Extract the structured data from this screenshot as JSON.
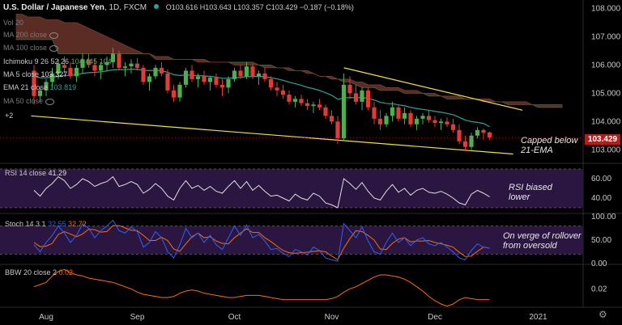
{
  "header": {
    "symbol": "U.S. Dollar / Japanese Yen",
    "interval": "1D",
    "exchange": "FXCM",
    "ohlc": "O103.616  H103.643  L103.357  C103.429  −0.187 (−0.18%)"
  },
  "indicators_panel": {
    "vol": "Vol 20",
    "ma200": "MA 200 close",
    "ma100": "MA 100 close",
    "ichimoku": "Ichimoku 9 26 52 26",
    "ichimoku_vals": "104.445  104",
    "ma5": "MA 5 close",
    "ma5_val": "103.327",
    "ema21": "EMA 21 close",
    "ema21_val": "103.819",
    "ma50": "MA 50 close",
    "more": "+2"
  },
  "price_tag": "103.429",
  "annotations": {
    "capped": [
      "Capped below",
      "21-EMA"
    ],
    "rsi": [
      "RSI biased",
      "lower"
    ],
    "stoch": [
      "On verge of rollover",
      "from oversold"
    ]
  },
  "pane_labels": {
    "rsi": "RSI 14 close",
    "rsi_val": "41.29",
    "stoch": "Stoch 14 3 1",
    "stoch_k": "32.55",
    "stoch_d": "32.72",
    "bbw": "BBW 20 close 2",
    "bbw_val": "0.02"
  },
  "colors": {
    "up": "#4caf50",
    "down": "#e53935",
    "cloud": "#7a3b30",
    "ema": "#26a69a",
    "trendline": "#f2e33a",
    "rsi_band": "#2a1640",
    "stoch_k": "#2962ff",
    "stoch_d": "#ff6d00",
    "bbw": "#ff6d00"
  },
  "chart_data": {
    "type": "candlestick",
    "title": "U.S. Dollar / Japanese Yen, 1D, FXCM",
    "x_ticks": [
      "Aug",
      "Sep",
      "Oct",
      "Nov",
      "Dec",
      "2021"
    ],
    "price_axis": {
      "ticks": [
        108.0,
        107.0,
        106.0,
        105.0,
        104.0,
        103.0
      ],
      "ylim": [
        102.55,
        108.3
      ],
      "last": 103.429
    },
    "candles": [
      [
        105.8,
        106.0,
        104.6,
        104.9
      ],
      [
        104.9,
        105.2,
        104.7,
        105.1
      ],
      [
        105.1,
        105.5,
        104.9,
        105.4
      ],
      [
        105.4,
        105.9,
        105.2,
        105.7
      ],
      [
        105.7,
        106.2,
        105.5,
        106.05
      ],
      [
        106.0,
        106.3,
        105.7,
        105.9
      ],
      [
        105.9,
        106.1,
        105.5,
        105.6
      ],
      [
        105.6,
        106.0,
        105.4,
        105.9
      ],
      [
        105.9,
        106.4,
        105.7,
        106.2
      ],
      [
        106.2,
        106.4,
        105.9,
        106.0
      ],
      [
        106.0,
        106.2,
        105.6,
        105.8
      ],
      [
        105.8,
        106.1,
        105.5,
        106.0
      ],
      [
        106.0,
        106.3,
        105.8,
        106.1
      ],
      [
        106.1,
        106.6,
        105.9,
        106.4
      ],
      [
        106.4,
        106.5,
        105.8,
        105.9
      ],
      [
        105.9,
        106.1,
        105.6,
        105.95
      ],
      [
        105.95,
        106.2,
        105.7,
        106.05
      ],
      [
        106.05,
        106.25,
        105.8,
        105.9
      ],
      [
        105.9,
        106.0,
        105.3,
        105.4
      ],
      [
        105.4,
        105.7,
        105.1,
        105.6
      ],
      [
        105.6,
        106.0,
        105.5,
        105.9
      ],
      [
        105.9,
        106.1,
        105.6,
        105.7
      ],
      [
        105.7,
        105.85,
        105.0,
        105.1
      ],
      [
        105.1,
        105.3,
        104.7,
        104.85
      ],
      [
        104.85,
        105.4,
        104.7,
        105.3
      ],
      [
        105.3,
        105.9,
        105.2,
        105.8
      ],
      [
        105.8,
        106.0,
        105.4,
        105.5
      ],
      [
        105.5,
        105.7,
        105.2,
        105.6
      ],
      [
        105.6,
        105.8,
        105.3,
        105.4
      ],
      [
        105.4,
        105.6,
        105.1,
        105.55
      ],
      [
        105.55,
        105.7,
        105.2,
        105.3
      ],
      [
        105.3,
        105.5,
        104.9,
        105.2
      ],
      [
        105.2,
        105.6,
        105.0,
        105.5
      ],
      [
        105.5,
        105.9,
        105.4,
        105.8
      ],
      [
        105.8,
        106.0,
        105.5,
        105.6
      ],
      [
        105.6,
        106.1,
        105.5,
        105.95
      ],
      [
        105.95,
        106.05,
        105.5,
        105.6
      ],
      [
        105.6,
        105.8,
        105.3,
        105.7
      ],
      [
        105.7,
        105.9,
        105.4,
        105.5
      ],
      [
        105.5,
        105.6,
        105.1,
        105.2
      ],
      [
        105.2,
        105.4,
        104.9,
        105.1
      ],
      [
        105.1,
        105.3,
        104.8,
        104.95
      ],
      [
        104.95,
        105.1,
        104.6,
        104.7
      ],
      [
        104.7,
        104.9,
        104.5,
        104.8
      ],
      [
        104.8,
        104.95,
        104.55,
        104.65
      ],
      [
        104.65,
        104.8,
        104.4,
        104.55
      ],
      [
        104.55,
        104.7,
        104.3,
        104.6
      ],
      [
        104.6,
        104.8,
        104.4,
        104.5
      ],
      [
        104.5,
        104.6,
        104.1,
        104.2
      ],
      [
        104.2,
        104.4,
        103.9,
        104.0
      ],
      [
        104.0,
        104.2,
        103.2,
        103.4
      ],
      [
        103.4,
        105.7,
        103.3,
        105.3
      ],
      [
        105.3,
        105.6,
        104.8,
        105.0
      ],
      [
        105.0,
        105.3,
        104.6,
        104.7
      ],
      [
        104.7,
        105.2,
        104.4,
        105.1
      ],
      [
        105.1,
        105.2,
        104.4,
        104.5
      ],
      [
        104.5,
        104.7,
        103.9,
        104.1
      ],
      [
        104.1,
        104.4,
        103.7,
        103.9
      ],
      [
        103.9,
        104.3,
        103.8,
        104.2
      ],
      [
        104.2,
        104.7,
        104.0,
        104.5
      ],
      [
        104.5,
        104.6,
        104.0,
        104.1
      ],
      [
        104.1,
        104.5,
        103.9,
        104.3
      ],
      [
        104.3,
        104.4,
        103.8,
        103.9
      ],
      [
        103.9,
        104.2,
        103.7,
        104.1
      ],
      [
        104.1,
        104.3,
        103.9,
        104.2
      ],
      [
        104.2,
        104.4,
        103.95,
        104.05
      ],
      [
        104.05,
        104.2,
        103.8,
        103.95
      ],
      [
        103.95,
        104.1,
        103.7,
        104.0
      ],
      [
        104.0,
        104.15,
        103.8,
        103.9
      ],
      [
        103.9,
        104.1,
        103.6,
        103.7
      ],
      [
        103.7,
        103.9,
        103.2,
        103.3
      ],
      [
        103.3,
        103.5,
        102.95,
        103.1
      ],
      [
        103.1,
        103.6,
        103.0,
        103.5
      ],
      [
        103.5,
        103.8,
        103.4,
        103.7
      ],
      [
        103.7,
        103.75,
        103.35,
        103.6
      ],
      [
        103.616,
        103.643,
        103.357,
        103.429
      ]
    ],
    "ema21": [
      105.6,
      105.55,
      105.55,
      105.56,
      105.6,
      105.63,
      105.63,
      105.66,
      105.7,
      105.73,
      105.74,
      105.76,
      105.79,
      105.83,
      105.84,
      105.84,
      105.85,
      105.85,
      105.81,
      105.8,
      105.81,
      105.8,
      105.74,
      105.66,
      105.63,
      105.65,
      105.63,
      105.63,
      105.61,
      105.6,
      105.57,
      105.53,
      105.53,
      105.55,
      105.56,
      105.59,
      105.59,
      105.6,
      105.59,
      105.55,
      105.51,
      105.46,
      105.39,
      105.34,
      105.28,
      105.21,
      105.16,
      105.1,
      105.02,
      104.93,
      104.79,
      104.83,
      104.85,
      104.84,
      104.85,
      104.82,
      104.76,
      104.68,
      104.64,
      104.63,
      104.59,
      104.56,
      104.5,
      104.46,
      104.43,
      104.4,
      104.36,
      104.33,
      104.29,
      104.24,
      104.15,
      104.05,
      104.0,
      103.97,
      103.93,
      103.82
    ],
    "cloud_a": [
      106.9,
      106.9,
      106.9,
      106.9,
      106.9,
      106.9,
      106.9,
      106.4,
      106.4,
      106.4,
      106.4,
      106.4,
      106.4,
      106.4,
      106.4,
      106.4,
      106.4,
      106.4,
      106.4,
      106.4,
      106.4,
      106.4,
      106.4,
      106.2,
      106.2,
      106.2,
      106.2,
      106.2,
      106.2,
      106.2,
      106.2,
      106.2,
      106.1,
      106.1,
      106.1,
      106.1,
      106.1,
      106.1,
      106.1,
      106.1,
      106.0,
      106.0,
      106.0,
      105.9,
      105.9,
      105.9,
      105.8,
      105.8,
      105.8,
      105.7,
      105.6,
      105.6,
      105.5,
      105.5,
      105.4,
      105.4,
      105.3,
      105.2,
      105.2,
      105.2,
      105.1,
      105.1,
      105.1,
      105.1,
      105.0,
      105.0,
      105.0,
      105.0,
      104.9,
      104.9,
      104.9,
      104.8,
      104.8,
      104.8,
      104.8,
      104.8,
      104.8,
      104.7,
      104.7,
      104.7,
      104.7,
      104.6,
      104.6,
      104.6,
      104.6,
      104.6,
      104.5,
      104.5,
      104.5,
      104.5,
      104.5
    ],
    "cloud_b": [
      107.8,
      107.8,
      107.7,
      107.7,
      107.7,
      107.6,
      107.6,
      107.6,
      107.5,
      107.5,
      107.5,
      107.4,
      107.3,
      107.2,
      107.1,
      107.0,
      106.9,
      106.8,
      106.7,
      106.6,
      106.5,
      106.4,
      106.4,
      106.3,
      106.3,
      106.3,
      106.2,
      106.2,
      106.2,
      106.2,
      106.1,
      106.1,
      106.1,
      106.1,
      106.1,
      106.1,
      106.0,
      106.0,
      106.0,
      106.0,
      106.0,
      105.9,
      105.9,
      105.9,
      105.9,
      105.8,
      105.8,
      105.8,
      105.7,
      105.7,
      105.6,
      105.6,
      105.6,
      105.5,
      105.5,
      105.5,
      105.4,
      105.4,
      105.3,
      105.3,
      105.3,
      105.2,
      105.2,
      105.2,
      105.1,
      105.1,
      105.1,
      105.0,
      105.0,
      105.0,
      104.9,
      104.9,
      104.9,
      104.9,
      104.8,
      104.8,
      104.8,
      104.8,
      104.8,
      104.7,
      104.7,
      104.7,
      104.7,
      104.7,
      104.7,
      104.6,
      104.6,
      104.6,
      104.6,
      104.6,
      104.6
    ],
    "trendline_upper": {
      "from": [
        0.553,
        105.9
      ],
      "to": [
        0.84,
        104.4
      ]
    },
    "trendline_lower": {
      "from": [
        0.05,
        104.2
      ],
      "to": [
        0.825,
        102.85
      ]
    },
    "rsi": {
      "ticks": [
        60.0,
        40.0
      ],
      "ylim": [
        25,
        75
      ],
      "band": [
        30,
        70
      ],
      "values": [
        48,
        42,
        50,
        55,
        62,
        58,
        50,
        54,
        60,
        57,
        52,
        55,
        57,
        62,
        52,
        54,
        57,
        54,
        45,
        49,
        55,
        50,
        42,
        38,
        50,
        58,
        50,
        53,
        48,
        52,
        47,
        45,
        52,
        58,
        50,
        57,
        48,
        53,
        47,
        42,
        43,
        40,
        37,
        44,
        40,
        38,
        45,
        42,
        35,
        33,
        30,
        60,
        55,
        49,
        56,
        47,
        40,
        38,
        47,
        54,
        46,
        50,
        43,
        48,
        50,
        46,
        45,
        47,
        44,
        40,
        35,
        33,
        44,
        48,
        45,
        41.29
      ]
    },
    "stoch": {
      "ticks": [
        100.0,
        50.0,
        0.0
      ],
      "ylim": [
        0,
        105
      ],
      "band": [
        20,
        80
      ],
      "k": [
        40,
        25,
        45,
        60,
        80,
        65,
        45,
        60,
        85,
        75,
        55,
        70,
        80,
        92,
        70,
        65,
        78,
        68,
        35,
        45,
        68,
        55,
        25,
        12,
        40,
        75,
        55,
        65,
        45,
        60,
        40,
        30,
        55,
        80,
        60,
        82,
        55,
        62,
        48,
        30,
        32,
        22,
        15,
        30,
        25,
        18,
        35,
        28,
        12,
        8,
        5,
        85,
        70,
        55,
        78,
        48,
        25,
        20,
        45,
        65,
        45,
        55,
        38,
        50,
        55,
        42,
        38,
        45,
        35,
        25,
        12,
        8,
        28,
        42,
        35,
        32.55
      ],
      "d": [
        45,
        36,
        37,
        43,
        62,
        68,
        63,
        57,
        63,
        73,
        72,
        67,
        68,
        81,
        81,
        76,
        71,
        70,
        60,
        49,
        49,
        56,
        49,
        31,
        26,
        42,
        57,
        65,
        55,
        57,
        48,
        43,
        42,
        55,
        65,
        74,
        66,
        66,
        55,
        47,
        37,
        28,
        23,
        22,
        23,
        24,
        26,
        27,
        25,
        16,
        8,
        33,
        53,
        70,
        68,
        60,
        50,
        31,
        30,
        43,
        52,
        55,
        46,
        48,
        48,
        49,
        45,
        42,
        39,
        35,
        24,
        15,
        16,
        26,
        35,
        32.72
      ]
    },
    "bbw": {
      "ticks": [
        0.02
      ],
      "ylim": [
        0.003,
        0.042
      ],
      "values": [
        0.022,
        0.024,
        0.026,
        0.032,
        0.036,
        0.038,
        0.035,
        0.033,
        0.032,
        0.03,
        0.029,
        0.028,
        0.027,
        0.026,
        0.024,
        0.022,
        0.02,
        0.017,
        0.015,
        0.014,
        0.013,
        0.012,
        0.012,
        0.013,
        0.016,
        0.018,
        0.019,
        0.018,
        0.016,
        0.015,
        0.014,
        0.013,
        0.012,
        0.012,
        0.013,
        0.014,
        0.014,
        0.014,
        0.013,
        0.012,
        0.011,
        0.01,
        0.01,
        0.01,
        0.01,
        0.01,
        0.01,
        0.01,
        0.01,
        0.011,
        0.013,
        0.017,
        0.02,
        0.022,
        0.025,
        0.028,
        0.031,
        0.033,
        0.033,
        0.032,
        0.031,
        0.029,
        0.026,
        0.022,
        0.018,
        0.013,
        0.009,
        0.006,
        0.004,
        0.006,
        0.01,
        0.012,
        0.011,
        0.01,
        0.01,
        0.01
      ]
    }
  }
}
